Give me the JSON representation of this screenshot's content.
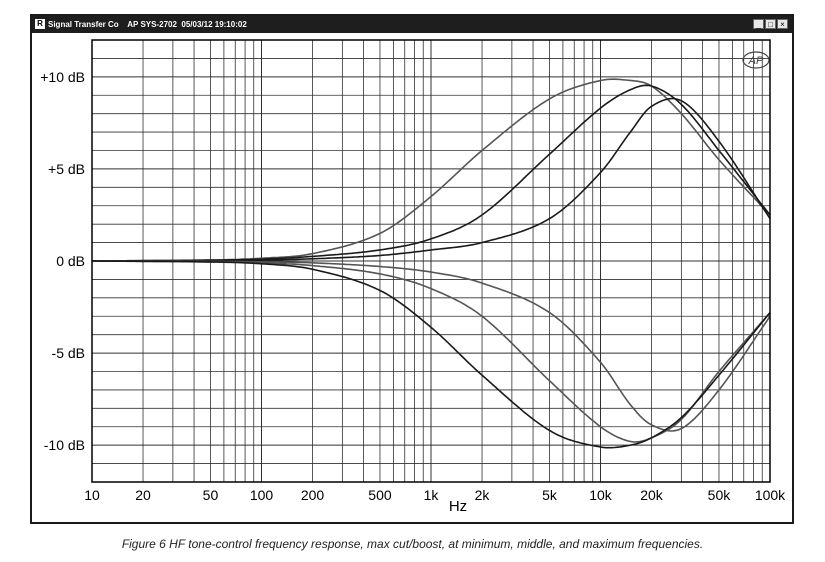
{
  "window": {
    "icon_glyph": "R",
    "title": "Signal Transfer Co    AP SYS-2702  05/03/12 19:10:02",
    "minimize_glyph": "_",
    "maximize_glyph": "□",
    "close_glyph": "×"
  },
  "logo_text": "AP",
  "caption": "Figure 6 HF tone-control frequency response, max cut/boost, at minimum, middle, and maximum frequencies.",
  "colors": {
    "grid": "#303030",
    "frame": "#000000",
    "series_dark": "#1a1a1a",
    "series_gray": "#555555"
  },
  "chart_data": {
    "type": "line",
    "title": "",
    "xlabel": "Hz",
    "ylabel": "",
    "x_scale": "log",
    "xlim": [
      10,
      100000
    ],
    "ylim": [
      -12,
      12
    ],
    "grid": true,
    "x_ticks": [
      {
        "v": 10,
        "label": "10"
      },
      {
        "v": 20,
        "label": "20"
      },
      {
        "v": 50,
        "label": "50"
      },
      {
        "v": 100,
        "label": "100"
      },
      {
        "v": 200,
        "label": "200"
      },
      {
        "v": 500,
        "label": "500"
      },
      {
        "v": 1000,
        "label": "1k"
      },
      {
        "v": 2000,
        "label": "2k"
      },
      {
        "v": 5000,
        "label": "5k"
      },
      {
        "v": 10000,
        "label": "10k"
      },
      {
        "v": 20000,
        "label": "20k"
      },
      {
        "v": 50000,
        "label": "50k"
      },
      {
        "v": 100000,
        "label": "100k"
      }
    ],
    "y_ticks": [
      {
        "v": 10,
        "label": "+10 dB"
      },
      {
        "v": 5,
        "label": "+5 dB"
      },
      {
        "v": 0,
        "label": "0 dB"
      },
      {
        "v": -5,
        "label": "-5 dB"
      },
      {
        "v": -10,
        "label": "-10 dB"
      }
    ],
    "series": [
      {
        "shade": "gray",
        "x": [
          10,
          50,
          100,
          200,
          500,
          1000,
          2000,
          5000,
          10000,
          15000,
          20000,
          30000,
          50000,
          100000
        ],
        "y": [
          0,
          0.05,
          0.15,
          0.4,
          1.5,
          3.5,
          6.0,
          8.8,
          9.8,
          9.8,
          9.5,
          8.0,
          5.5,
          2.5
        ]
      },
      {
        "shade": "dark",
        "x": [
          10,
          50,
          100,
          200,
          500,
          1000,
          2000,
          5000,
          10000,
          15000,
          20000,
          30000,
          50000,
          100000
        ],
        "y": [
          0,
          0.05,
          0.1,
          0.25,
          0.6,
          1.2,
          2.5,
          5.8,
          8.3,
          9.3,
          9.5,
          8.5,
          6.0,
          2.5
        ]
      },
      {
        "shade": "dark",
        "x": [
          10,
          50,
          100,
          200,
          500,
          1000,
          2000,
          5000,
          10000,
          15000,
          20000,
          30000,
          50000,
          100000
        ],
        "y": [
          0,
          0.02,
          0.05,
          0.12,
          0.3,
          0.6,
          1.0,
          2.3,
          4.8,
          7.0,
          8.4,
          8.7,
          6.5,
          2.3
        ]
      },
      {
        "shade": "gray",
        "x": [
          10,
          50,
          100,
          200,
          500,
          1000,
          2000,
          5000,
          10000,
          15000,
          20000,
          30000,
          50000,
          100000
        ],
        "y": [
          0,
          -0.02,
          -0.05,
          -0.1,
          -0.3,
          -0.6,
          -1.2,
          -2.8,
          -5.5,
          -7.8,
          -8.9,
          -9.1,
          -7.0,
          -3.0
        ]
      },
      {
        "shade": "gray",
        "x": [
          10,
          50,
          100,
          200,
          500,
          1000,
          2000,
          5000,
          10000,
          15000,
          20000,
          30000,
          50000,
          100000
        ],
        "y": [
          0,
          -0.05,
          -0.1,
          -0.25,
          -0.7,
          -1.5,
          -3.0,
          -6.5,
          -9.0,
          -9.8,
          -9.6,
          -8.6,
          -6.0,
          -2.8
        ]
      },
      {
        "shade": "dark",
        "x": [
          10,
          50,
          100,
          200,
          500,
          1000,
          2000,
          5000,
          10000,
          15000,
          20000,
          30000,
          50000,
          100000
        ],
        "y": [
          0,
          -0.05,
          -0.15,
          -0.45,
          -1.6,
          -3.6,
          -6.2,
          -9.2,
          -10.1,
          -10.0,
          -9.6,
          -8.5,
          -6.2,
          -2.8
        ]
      }
    ]
  }
}
